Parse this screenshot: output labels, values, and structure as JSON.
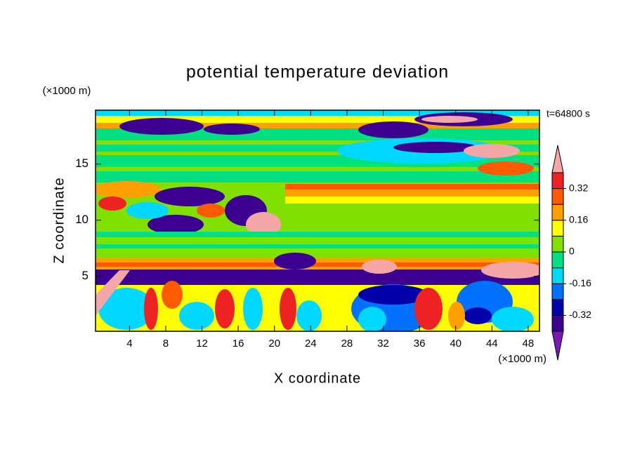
{
  "chart_data": {
    "type": "contour",
    "title": "potential temperature deviation",
    "xlabel": "X coordinate",
    "ylabel": "Z coordinate",
    "x_unit": "(×1000 m)",
    "y_unit": "(×1000 m)",
    "time_label": "t=64800 s",
    "xlim": [
      0.25,
      49.25
    ],
    "ylim": [
      0.1,
      19.8
    ],
    "xticks": [
      4,
      8,
      12,
      16,
      20,
      24,
      28,
      32,
      36,
      40,
      44,
      48
    ],
    "yticks": [
      5,
      10,
      15
    ],
    "colorbar": {
      "levels": [
        -0.4,
        -0.32,
        -0.24,
        -0.16,
        -0.08,
        0,
        0.08,
        0.16,
        0.24,
        0.32,
        0.4
      ],
      "ticks": [
        -0.32,
        -0.16,
        0,
        0.16,
        0.32
      ],
      "colors": [
        "#7a18b4",
        "#3c0090",
        "#0000a8",
        "#0070ff",
        "#00d8ff",
        "#00e080",
        "#80e000",
        "#ffff00",
        "#ffa000",
        "#ff5a00",
        "#ee2222",
        "#f4a7a6"
      ]
    }
  }
}
